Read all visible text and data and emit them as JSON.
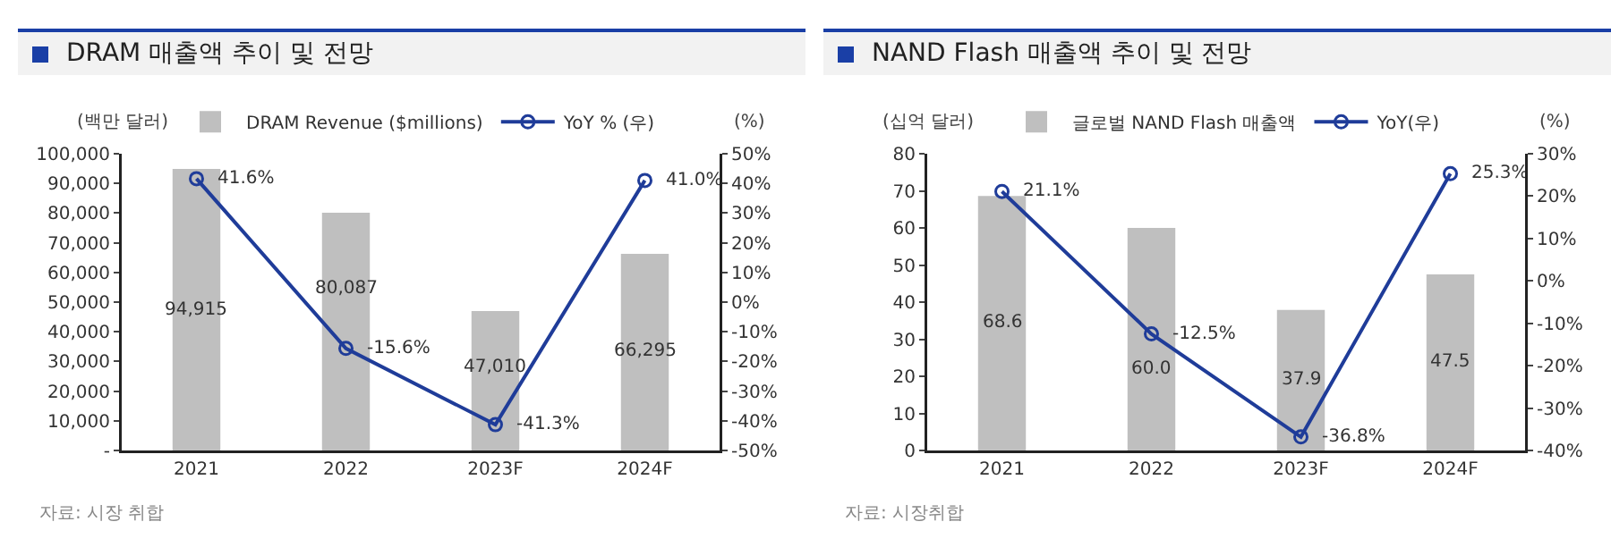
{
  "chart_data": [
    {
      "type": "bar",
      "title": "DRAM 매출액 추이 및 전망",
      "ylabel": "(백만 달러)",
      "y2label": "(%)",
      "categories": [
        "2021",
        "2022",
        "2023F",
        "2024F"
      ],
      "legend": "top",
      "marker": "circle",
      "series": [
        {
          "name": "DRAM Revenue ($millions)",
          "color": "#bfbfbf",
          "values": [
            94915,
            80087,
            47010,
            66295
          ],
          "value_labels": [
            "94,915",
            "80,087",
            "47,010",
            "66,295"
          ]
        },
        {
          "type": "line",
          "axis": "y2",
          "name": "YoY % (우)",
          "color": "#1f3c99",
          "values": [
            41.6,
            -15.6,
            -41.3,
            41.0
          ],
          "value_labels": [
            "41.6%",
            "-15.6%",
            "-41.3%",
            "41.0%"
          ]
        }
      ],
      "ylim": [
        0,
        100000
      ],
      "yticks": [
        {
          "value": 0,
          "label": "-"
        },
        {
          "value": 10000,
          "label": "10,000"
        },
        {
          "value": 20000,
          "label": "20,000"
        },
        {
          "value": 30000,
          "label": "30,000"
        },
        {
          "value": 40000,
          "label": "40,000"
        },
        {
          "value": 50000,
          "label": "50,000"
        },
        {
          "value": 60000,
          "label": "60,000"
        },
        {
          "value": 70000,
          "label": "70,000"
        },
        {
          "value": 80000,
          "label": "80,000"
        },
        {
          "value": 90000,
          "label": "90,000"
        },
        {
          "value": 100000,
          "label": "100,000"
        }
      ],
      "y2lim": [
        -50,
        50
      ],
      "y2ticks": [
        {
          "value": -50,
          "label": "-50%"
        },
        {
          "value": -40,
          "label": "-40%"
        },
        {
          "value": -30,
          "label": "-30%"
        },
        {
          "value": -20,
          "label": "-20%"
        },
        {
          "value": -10,
          "label": "-10%"
        },
        {
          "value": 0,
          "label": "0%"
        },
        {
          "value": 10,
          "label": "10%"
        },
        {
          "value": 20,
          "label": "20%"
        },
        {
          "value": 30,
          "label": "30%"
        },
        {
          "value": 40,
          "label": "40%"
        },
        {
          "value": 50,
          "label": "50%"
        }
      ],
      "annotations": [
        "자료: 시장 취합"
      ]
    },
    {
      "type": "bar",
      "title": "NAND Flash 매출액 추이 및 전망",
      "ylabel": "(십억 달러)",
      "y2label": "(%)",
      "categories": [
        "2021",
        "2022",
        "2023F",
        "2024F"
      ],
      "legend": "top",
      "marker": "circle",
      "series": [
        {
          "name": "글로벌 NAND Flash 매출액",
          "color": "#bfbfbf",
          "values": [
            68.6,
            60.0,
            37.9,
            47.5
          ],
          "value_labels": [
            "68.6",
            "60.0",
            "37.9",
            "47.5"
          ]
        },
        {
          "type": "line",
          "axis": "y2",
          "name": "YoY(우)",
          "color": "#1f3c99",
          "values": [
            21.1,
            -12.5,
            -36.8,
            25.3
          ],
          "value_labels": [
            "21.1%",
            "-12.5%",
            "-36.8%",
            "25.3%"
          ]
        }
      ],
      "ylim": [
        0,
        80
      ],
      "yticks": [
        0,
        10,
        20,
        30,
        40,
        50,
        60,
        70,
        80
      ],
      "y2lim": [
        -40,
        30
      ],
      "y2ticks": [
        {
          "value": -40,
          "label": "-40%"
        },
        {
          "value": -30,
          "label": "-30%"
        },
        {
          "value": -20,
          "label": "-20%"
        },
        {
          "value": -10,
          "label": "-10%"
        },
        {
          "value": 0,
          "label": "0%"
        },
        {
          "value": 10,
          "label": "10%"
        },
        {
          "value": 20,
          "label": "20%"
        },
        {
          "value": 30,
          "label": "30%"
        }
      ],
      "annotations": [
        "자료: 시장취합"
      ]
    }
  ]
}
